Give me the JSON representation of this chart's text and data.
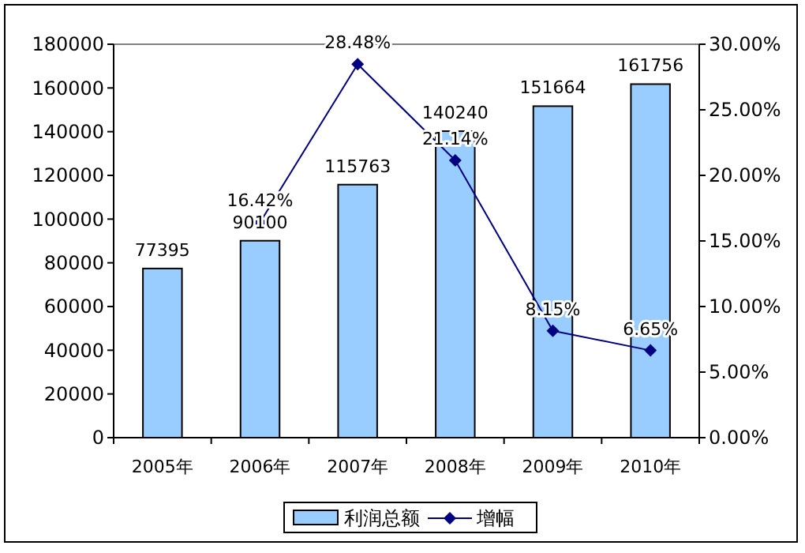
{
  "chart_data": {
    "type": "bar",
    "categories": [
      "2005年",
      "2006年",
      "2007年",
      "2008年",
      "2009年",
      "2010年"
    ],
    "series": [
      {
        "name": "利润总额",
        "color": "#99ccff",
        "values": [
          77395,
          90100,
          115763,
          140240,
          151664,
          161756
        ],
        "value_labels": [
          "77395",
          "90100",
          "115763",
          "140240",
          "151664",
          "161756"
        ]
      },
      {
        "name": "增幅",
        "type": "line",
        "axis": "y2",
        "color": "#000080",
        "marker": "diamond",
        "values": [
          null,
          16.42,
          28.48,
          21.14,
          8.15,
          6.65
        ],
        "value_labels": [
          null,
          "16.42%",
          "28.48%",
          "21.14%",
          "8.15%",
          "6.65%"
        ]
      }
    ],
    "ylim": [
      0,
      180000
    ],
    "yticks": [
      0,
      20000,
      40000,
      60000,
      80000,
      100000,
      120000,
      140000,
      160000,
      180000
    ],
    "y2lim": [
      0,
      30
    ],
    "y2ticks": [
      {
        "value": 0,
        "label": "0.00%"
      },
      {
        "value": 5,
        "label": "5.00%"
      },
      {
        "value": 10,
        "label": "10.00%"
      },
      {
        "value": 15,
        "label": "15.00%"
      },
      {
        "value": 20,
        "label": "20.00%"
      },
      {
        "value": 25,
        "label": "25.00%"
      },
      {
        "value": 30,
        "label": "30.00%"
      }
    ],
    "legend": "bottom",
    "grid": false
  }
}
